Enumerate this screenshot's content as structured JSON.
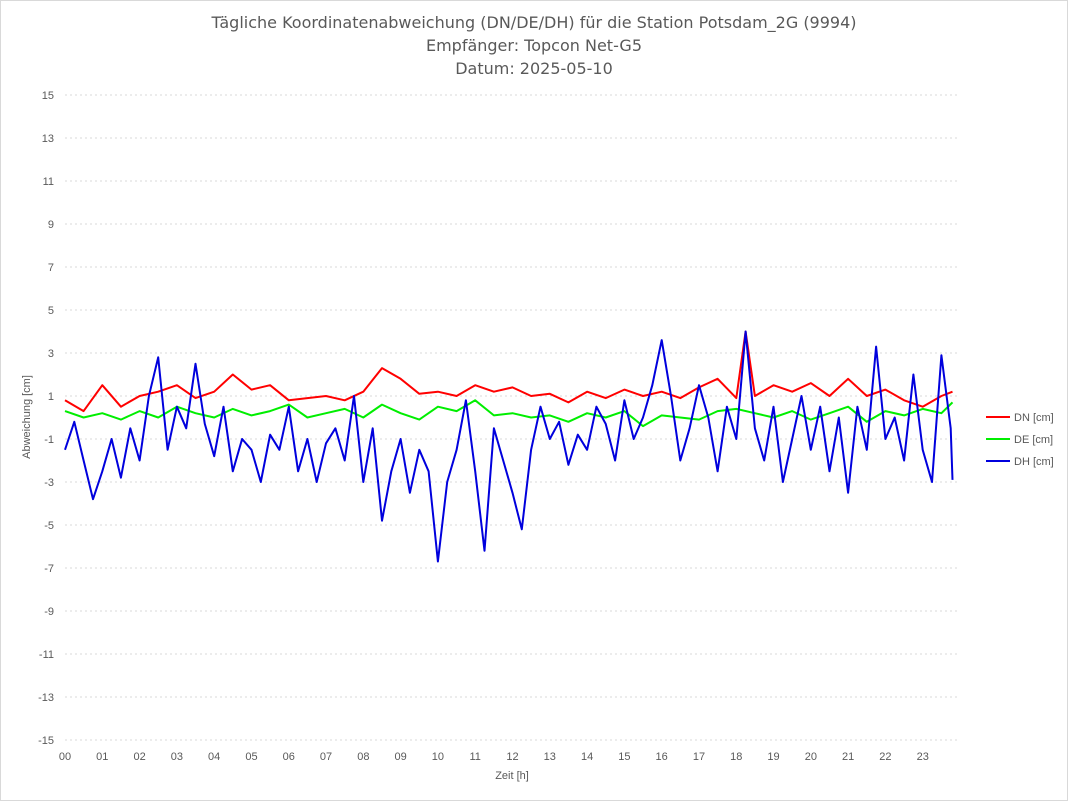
{
  "chart_data": {
    "type": "line",
    "title": [
      "Tägliche Koordinatenabweichung (DN/DE/DH) für die Station Potsdam_2G (9994)",
      "Empfänger: Topcon Net-G5",
      "Datum: 2025-05-10"
    ],
    "xlabel": "Zeit [h]",
    "ylabel": "Abweichung [cm]",
    "xlim": [
      0,
      24
    ],
    "ylim": [
      -15,
      15
    ],
    "y_ticks": [
      15,
      13,
      11,
      9,
      7,
      5,
      3,
      1,
      -1,
      -3,
      -5,
      -7,
      -9,
      -11,
      -13,
      -15
    ],
    "x_tick_labels": [
      "00",
      "01",
      "02",
      "03",
      "04",
      "05",
      "06",
      "07",
      "08",
      "09",
      "10",
      "11",
      "12",
      "13",
      "14",
      "15",
      "16",
      "17",
      "18",
      "19",
      "20",
      "21",
      "22",
      "23"
    ],
    "grid": "horizontal dotted",
    "legend_position": "right",
    "series": [
      {
        "name": "DN [cm]",
        "color": "#ff0000",
        "x": [
          0.0,
          0.5,
          1.0,
          1.5,
          2.0,
          2.5,
          3.0,
          3.5,
          4.0,
          4.5,
          5.0,
          5.5,
          6.0,
          6.5,
          7.0,
          7.5,
          8.0,
          8.5,
          9.0,
          9.5,
          10.0,
          10.5,
          11.0,
          11.5,
          12.0,
          12.5,
          13.0,
          13.5,
          14.0,
          14.5,
          15.0,
          15.5,
          16.0,
          16.5,
          17.0,
          17.5,
          18.0,
          18.25,
          18.5,
          19.0,
          19.5,
          20.0,
          20.5,
          21.0,
          21.5,
          22.0,
          22.5,
          23.0,
          23.5,
          23.8
        ],
        "values": [
          0.8,
          0.3,
          1.5,
          0.5,
          1.0,
          1.2,
          1.5,
          0.9,
          1.2,
          2.0,
          1.3,
          1.5,
          0.8,
          0.9,
          1.0,
          0.8,
          1.2,
          2.3,
          1.8,
          1.1,
          1.2,
          1.0,
          1.5,
          1.2,
          1.4,
          1.0,
          1.1,
          0.7,
          1.2,
          0.9,
          1.3,
          1.0,
          1.2,
          0.9,
          1.4,
          1.8,
          0.9,
          4.0,
          1.0,
          1.5,
          1.2,
          1.6,
          1.0,
          1.8,
          1.0,
          1.3,
          0.8,
          0.5,
          1.0,
          1.2
        ]
      },
      {
        "name": "DE [cm]",
        "color": "#00ee00",
        "x": [
          0.0,
          0.5,
          1.0,
          1.5,
          2.0,
          2.5,
          3.0,
          3.5,
          4.0,
          4.5,
          5.0,
          5.5,
          6.0,
          6.5,
          7.0,
          7.5,
          8.0,
          8.5,
          9.0,
          9.5,
          10.0,
          10.5,
          11.0,
          11.5,
          12.0,
          12.5,
          13.0,
          13.5,
          14.0,
          14.5,
          15.0,
          15.5,
          16.0,
          16.5,
          17.0,
          17.5,
          18.0,
          18.5,
          19.0,
          19.5,
          20.0,
          20.5,
          21.0,
          21.5,
          22.0,
          22.5,
          23.0,
          23.5,
          23.8
        ],
        "values": [
          0.3,
          0.0,
          0.2,
          -0.1,
          0.3,
          0.0,
          0.5,
          0.2,
          0.0,
          0.4,
          0.1,
          0.3,
          0.6,
          0.0,
          0.2,
          0.4,
          0.0,
          0.6,
          0.2,
          -0.1,
          0.5,
          0.3,
          0.8,
          0.1,
          0.2,
          0.0,
          0.1,
          -0.2,
          0.2,
          0.0,
          0.3,
          -0.4,
          0.1,
          0.0,
          -0.1,
          0.3,
          0.4,
          0.2,
          0.0,
          0.3,
          -0.1,
          0.2,
          0.5,
          -0.2,
          0.3,
          0.1,
          0.4,
          0.2,
          0.7
        ]
      },
      {
        "name": "DH [cm]",
        "color": "#0000dd",
        "x": [
          0.0,
          0.25,
          0.5,
          0.75,
          1.0,
          1.25,
          1.5,
          1.75,
          2.0,
          2.25,
          2.5,
          2.75,
          3.0,
          3.25,
          3.5,
          3.75,
          4.0,
          4.25,
          4.5,
          4.75,
          5.0,
          5.25,
          5.5,
          5.75,
          6.0,
          6.25,
          6.5,
          6.75,
          7.0,
          7.25,
          7.5,
          7.75,
          8.0,
          8.25,
          8.5,
          8.75,
          9.0,
          9.25,
          9.5,
          9.75,
          10.0,
          10.25,
          10.5,
          10.75,
          11.0,
          11.25,
          11.5,
          11.75,
          12.0,
          12.25,
          12.5,
          12.75,
          13.0,
          13.25,
          13.5,
          13.75,
          14.0,
          14.25,
          14.5,
          14.75,
          15.0,
          15.25,
          15.5,
          15.75,
          16.0,
          16.25,
          16.5,
          16.75,
          17.0,
          17.25,
          17.5,
          17.75,
          18.0,
          18.25,
          18.5,
          18.75,
          19.0,
          19.25,
          19.5,
          19.75,
          20.0,
          20.25,
          20.5,
          20.75,
          21.0,
          21.25,
          21.5,
          21.75,
          22.0,
          22.25,
          22.5,
          22.75,
          23.0,
          23.25,
          23.5,
          23.75,
          23.8
        ],
        "values": [
          -1.5,
          -0.2,
          -2.0,
          -3.8,
          -2.5,
          -1.0,
          -2.8,
          -0.5,
          -2.0,
          1.0,
          2.8,
          -1.5,
          0.5,
          -0.5,
          2.5,
          -0.3,
          -1.8,
          0.5,
          -2.5,
          -1.0,
          -1.5,
          -3.0,
          -0.8,
          -1.5,
          0.5,
          -2.5,
          -1.0,
          -3.0,
          -1.2,
          -0.5,
          -2.0,
          1.0,
          -3.0,
          -0.5,
          -4.8,
          -2.5,
          -1.0,
          -3.5,
          -1.5,
          -2.5,
          -6.7,
          -3.0,
          -1.5,
          0.8,
          -2.5,
          -6.2,
          -0.5,
          -2.0,
          -3.5,
          -5.2,
          -1.5,
          0.5,
          -1.0,
          -0.2,
          -2.2,
          -0.8,
          -1.5,
          0.5,
          -0.3,
          -2.0,
          0.8,
          -1.0,
          0.0,
          1.5,
          3.6,
          1.0,
          -2.0,
          -0.5,
          1.5,
          0.0,
          -2.5,
          0.5,
          -1.0,
          4.0,
          -0.5,
          -2.0,
          0.5,
          -3.0,
          -1.0,
          1.0,
          -1.5,
          0.5,
          -2.5,
          0.0,
          -3.5,
          0.5,
          -1.5,
          3.3,
          -1.0,
          0.0,
          -2.0,
          2.0,
          -1.5,
          -3.0,
          2.9,
          -0.5,
          -2.9
        ]
      }
    ]
  }
}
